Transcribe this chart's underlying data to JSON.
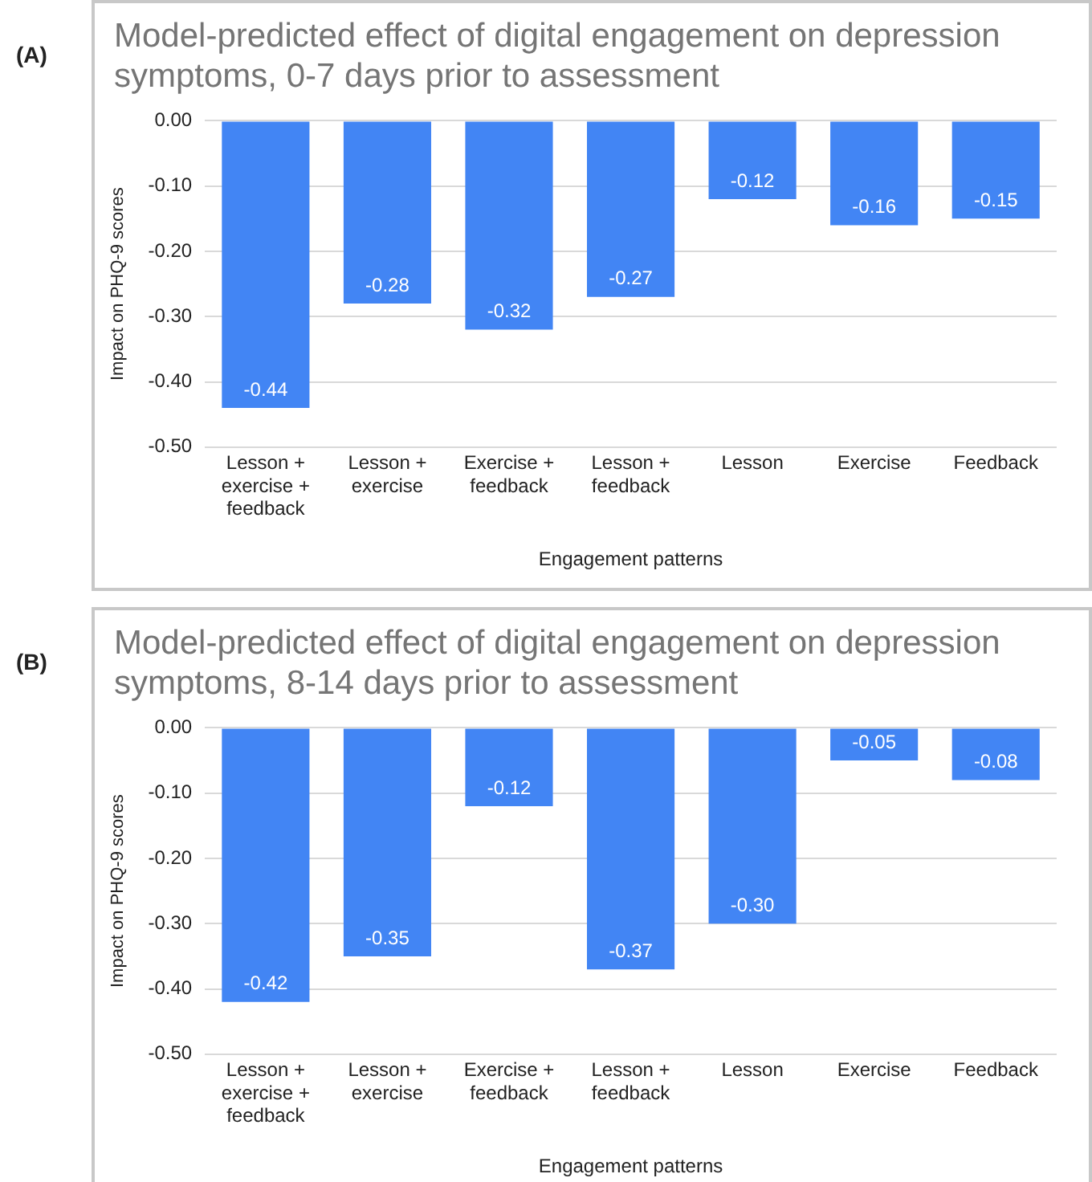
{
  "chart_data": [
    {
      "type": "bar",
      "title": "Model-predicted effect of digital engagement on depression symptoms, 0-7 days prior to assessment",
      "annotations": [
        "(A)"
      ],
      "xlabel": "Engagement patterns",
      "ylabel": "Impact on PHQ-9 scores",
      "categories": [
        "Lesson + exercise + feedback",
        "Lesson + exercise",
        "Exercise + feedback",
        "Lesson + feedback",
        "Lesson",
        "Exercise",
        "Feedback"
      ],
      "values": [
        -0.44,
        -0.28,
        -0.32,
        -0.27,
        -0.12,
        -0.16,
        -0.15
      ],
      "value_labels": [
        "-0.44",
        "-0.28",
        "-0.32",
        "-0.27",
        "-0.12",
        "-0.16",
        "-0.15"
      ],
      "color": "#4285f4",
      "ylim": [
        -0.5,
        0
      ],
      "yticks": [
        {
          "value": 0,
          "label": "0.00"
        },
        {
          "value": -0.1,
          "label": "-0.10"
        },
        {
          "value": -0.2,
          "label": "-0.20"
        },
        {
          "value": -0.3,
          "label": "-0.30"
        },
        {
          "value": -0.4,
          "label": "-0.40"
        },
        {
          "value": -0.5,
          "label": "-0.50"
        }
      ],
      "grid": "y",
      "legend": false
    },
    {
      "type": "bar",
      "title": "Model-predicted effect of digital engagement on depression symptoms, 8-14 days prior to assessment",
      "annotations": [
        "(B)"
      ],
      "xlabel": "Engagement patterns",
      "ylabel": "Impact on PHQ-9 scores",
      "categories": [
        "Lesson + exercise + feedback",
        "Lesson + exercise",
        "Exercise + feedback",
        "Lesson + feedback",
        "Lesson",
        "Exercise",
        "Feedback"
      ],
      "values": [
        -0.42,
        -0.35,
        -0.12,
        -0.37,
        -0.3,
        -0.05,
        -0.08
      ],
      "value_labels": [
        "-0.42",
        "-0.35",
        "-0.12",
        "-0.37",
        "-0.30",
        "-0.05",
        "-0.08"
      ],
      "color": "#4285f4",
      "ylim": [
        -0.5,
        0
      ],
      "yticks": [
        {
          "value": 0,
          "label": "0.00"
        },
        {
          "value": -0.1,
          "label": "-0.10"
        },
        {
          "value": -0.2,
          "label": "-0.20"
        },
        {
          "value": -0.3,
          "label": "-0.30"
        },
        {
          "value": -0.4,
          "label": "-0.40"
        },
        {
          "value": -0.5,
          "label": "-0.50"
        }
      ],
      "grid": "y",
      "legend": false
    }
  ]
}
